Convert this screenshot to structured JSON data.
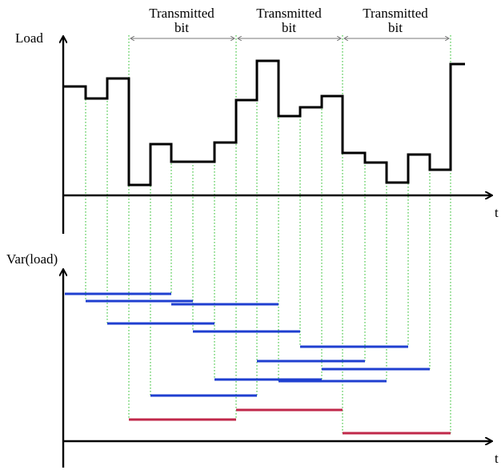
{
  "labels": {
    "top_y_axis": "Load",
    "top_x_axis": "t",
    "bottom_y_axis": "Var(load)",
    "bottom_x_axis": "t",
    "bit_1_line1": "Transmitted",
    "bit_1_line2": "bit",
    "bit_2_line1": "Transmitted",
    "bit_2_line2": "bit",
    "bit_3_line1": "Transmitted",
    "bit_3_line2": "bit"
  },
  "colors": {
    "axis": "#000000",
    "load_signal": "#000000",
    "guide_lines": "#4ec94e",
    "window_variance": "#1f3fd0",
    "bit_variance": "#c0284a",
    "bit_span_arrow": "#7a7a7a"
  }
}
